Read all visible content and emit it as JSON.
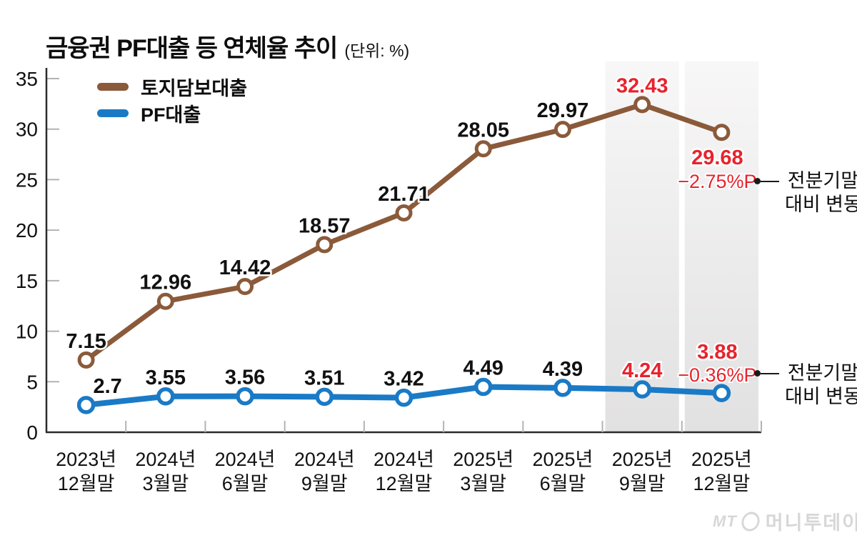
{
  "chart_data": {
    "type": "line",
    "title": "금융권 PF대출 등 연체율 추이",
    "unit": "(단위: %)",
    "categories": [
      [
        "2023년",
        "12월말"
      ],
      [
        "2024년",
        "3월말"
      ],
      [
        "2024년",
        "6월말"
      ],
      [
        "2024년",
        "9월말"
      ],
      [
        "2024년",
        "12월말"
      ],
      [
        "2025년",
        "3월말"
      ],
      [
        "2025년",
        "6월말"
      ],
      [
        "2025년",
        "9월말"
      ],
      [
        "2025년",
        "12월말"
      ]
    ],
    "series": [
      {
        "name": "토지담보대출",
        "color": "#8a5a3a",
        "values": [
          7.15,
          12.96,
          14.42,
          18.57,
          21.71,
          28.05,
          29.97,
          32.43,
          29.68
        ]
      },
      {
        "name": "PF대출",
        "color": "#1a7ac6",
        "values": [
          2.7,
          3.55,
          3.56,
          3.51,
          3.42,
          4.49,
          4.39,
          4.24,
          3.88
        ]
      }
    ],
    "yticks": [
      0,
      5,
      10,
      15,
      20,
      25,
      30,
      35
    ],
    "ylim": [
      0,
      35
    ],
    "grid": false,
    "legend_position": "top-left",
    "highlight_categories": [
      7,
      8
    ],
    "label_color": "#111111",
    "highlight_label_color": "#e8232d",
    "deltas": [
      {
        "series": 0,
        "index": 8,
        "text": "−2.75%P"
      },
      {
        "series": 1,
        "index": 8,
        "text": "−0.36%P"
      }
    ]
  },
  "annotations": [
    {
      "line1": "전분기말",
      "line2": "대비 변동"
    },
    {
      "line1": "전분기말",
      "line2": "대비 변동"
    }
  ],
  "footer": {
    "logo_mt": "MT",
    "logo_text": "머니투데이"
  }
}
